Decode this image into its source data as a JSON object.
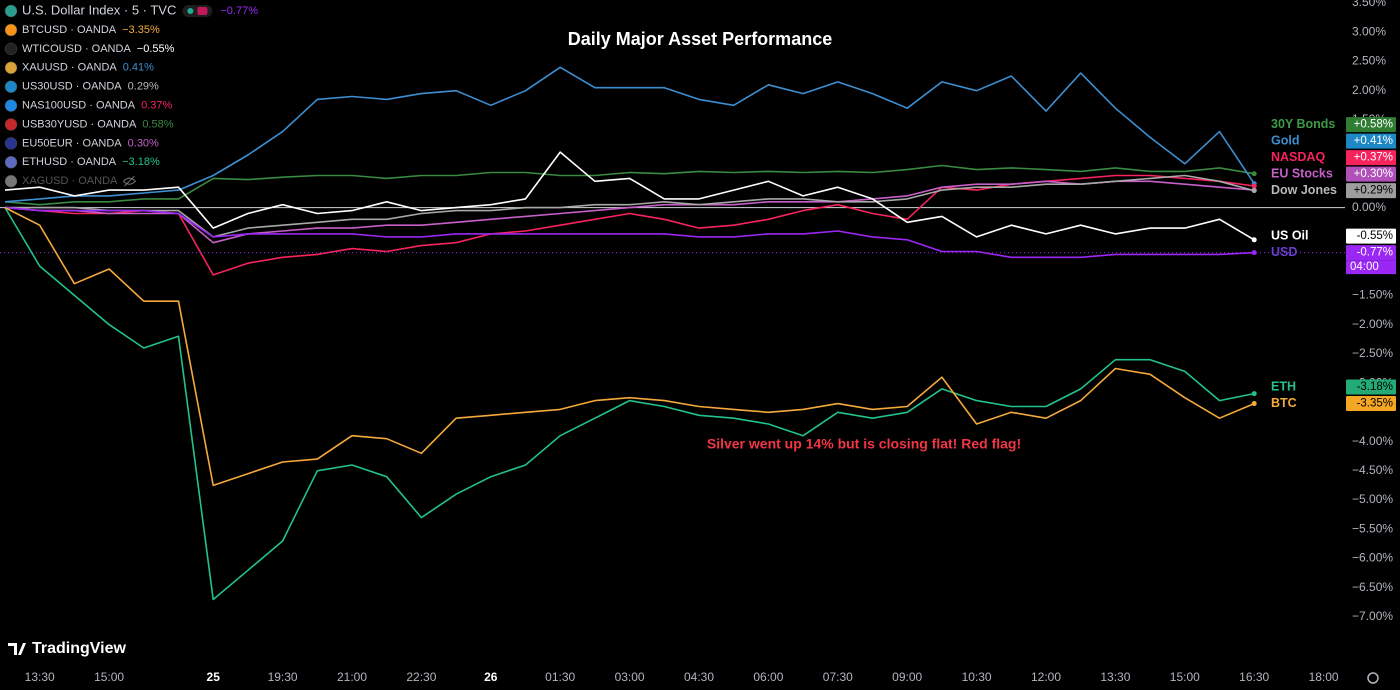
{
  "chart_data": {
    "type": "line",
    "title": "Daily Major Asset Performance",
    "annotation": "Silver went up 14% but is closing flat! Red flag!",
    "categories": [
      null,
      "13:30",
      null,
      "15:00",
      null,
      null,
      "25",
      null,
      "19:30",
      null,
      "21:00",
      null,
      "22:30",
      null,
      "26",
      null,
      "01:30",
      null,
      "03:00",
      null,
      "04:30",
      null,
      "06:00",
      null,
      "07:30",
      null,
      "09:00",
      null,
      "10:30",
      null,
      "12:00",
      null,
      "13:30",
      null,
      "15:00",
      null,
      "16:30",
      null,
      "18:00"
    ],
    "ylim": [
      -7.82,
      3.55
    ],
    "yticks": [
      {
        "value": 3.5,
        "label": "3.50%"
      },
      {
        "value": 3.0,
        "label": "3.00%"
      },
      {
        "value": 2.5,
        "label": "2.50%"
      },
      {
        "value": 2.0,
        "label": "2.00%"
      },
      {
        "value": 1.5,
        "label": "1.50%"
      },
      {
        "value": 0,
        "label": "0.00%"
      },
      {
        "value": -1.5,
        "label": "−1.50%"
      },
      {
        "value": -2.0,
        "label": "−2.00%"
      },
      {
        "value": -2.5,
        "label": "−2.50%"
      },
      {
        "value": -3.0,
        "label": "−3.00%"
      },
      {
        "value": -4.0,
        "label": "−4.00%"
      },
      {
        "value": -4.5,
        "label": "−4.50%"
      },
      {
        "value": -5.0,
        "label": "−5.00%"
      },
      {
        "value": -5.5,
        "label": "−5.50%"
      },
      {
        "value": -6.0,
        "label": "−6.00%"
      },
      {
        "value": -6.5,
        "label": "−6.50%"
      },
      {
        "value": -7.0,
        "label": "−7.00%"
      }
    ],
    "zero_line": true,
    "countdown": "04:00",
    "series": [
      {
        "name": "30Y Bonds",
        "color": "#3a8a42",
        "label_color": "#3f9a48",
        "tag_color": "#2e7d32",
        "tag_text": "#ffffff",
        "end_label": "+0.58%",
        "values": [
          0.1,
          0.05,
          0.1,
          0.1,
          0.15,
          0.15,
          0.5,
          0.48,
          0.52,
          0.55,
          0.55,
          0.5,
          0.55,
          0.55,
          0.6,
          0.6,
          0.55,
          0.55,
          0.6,
          0.58,
          0.62,
          0.6,
          0.62,
          0.6,
          0.62,
          0.6,
          0.65,
          0.72,
          0.65,
          0.68,
          0.65,
          0.62,
          0.68,
          0.62,
          0.62,
          0.68,
          0.58,
          null,
          null
        ]
      },
      {
        "name": "Gold",
        "color": "#3d8fd1",
        "label_color": "#3d8fd1",
        "tag_color": "#1e88c7",
        "tag_text": "#ffffff",
        "end_label": "+0.41%",
        "values": [
          0.1,
          0.15,
          0.2,
          0.2,
          0.25,
          0.3,
          0.55,
          0.9,
          1.3,
          1.85,
          1.9,
          1.85,
          1.95,
          2.0,
          1.75,
          2.0,
          2.4,
          2.05,
          2.05,
          2.05,
          1.85,
          1.75,
          2.1,
          1.95,
          2.15,
          1.95,
          1.7,
          2.15,
          2.0,
          2.25,
          1.65,
          2.3,
          1.7,
          1.2,
          0.75,
          1.3,
          0.41,
          null,
          null
        ]
      },
      {
        "name": "NASDAQ",
        "color": "#f7235d",
        "label_color": "#f7235d",
        "tag_color": "#f7235d",
        "tag_text": "#ffffff",
        "end_label": "+0.37%",
        "values": [
          0,
          -0.05,
          -0.1,
          -0.1,
          -0.05,
          -0.1,
          -1.15,
          -0.95,
          -0.85,
          -0.8,
          -0.7,
          -0.75,
          -0.65,
          -0.6,
          -0.45,
          -0.4,
          -0.3,
          -0.2,
          -0.1,
          -0.2,
          -0.35,
          -0.3,
          -0.2,
          -0.05,
          0.05,
          -0.1,
          -0.2,
          0.35,
          0.3,
          0.4,
          0.45,
          0.5,
          0.55,
          0.55,
          0.5,
          0.45,
          0.37,
          null,
          null
        ]
      },
      {
        "name": "EU Stocks",
        "color": "#c75fc9",
        "label_color": "#c75fc9",
        "tag_color": "#b050b8",
        "tag_text": "#ffffff",
        "end_label": "+0.30%",
        "values": [
          0,
          -0.05,
          -0.05,
          -0.1,
          -0.1,
          -0.1,
          -0.6,
          -0.45,
          -0.4,
          -0.35,
          -0.35,
          -0.3,
          -0.3,
          -0.25,
          -0.2,
          -0.15,
          -0.1,
          -0.05,
          0,
          0.05,
          0.05,
          0.05,
          0.1,
          0.1,
          0.1,
          0.15,
          0.2,
          0.35,
          0.4,
          0.4,
          0.45,
          0.4,
          0.45,
          0.45,
          0.4,
          0.35,
          0.3,
          null,
          null
        ]
      },
      {
        "name": "Dow Jones",
        "color": "#a8a8a8",
        "label_color": "#b8b8b8",
        "tag_color": "#9e9e9e",
        "tag_text": "#000000",
        "end_label": "+0.29%",
        "values": [
          0,
          0,
          0,
          -0.05,
          -0.05,
          -0.05,
          -0.5,
          -0.35,
          -0.3,
          -0.25,
          -0.2,
          -0.2,
          -0.1,
          -0.05,
          -0.05,
          0,
          0,
          0.05,
          0.05,
          0.1,
          0.05,
          0.1,
          0.15,
          0.15,
          0.1,
          0.1,
          0.15,
          0.3,
          0.35,
          0.35,
          0.4,
          0.4,
          0.45,
          0.5,
          0.55,
          0.45,
          0.29,
          null,
          null
        ]
      },
      {
        "name": "US Oil",
        "color": "#ffffff",
        "label_color": "#ffffff",
        "tag_color": "#ffffff",
        "tag_text": "#000000",
        "end_label": "-0.55%",
        "values": [
          0.3,
          0.35,
          0.2,
          0.3,
          0.3,
          0.35,
          -0.35,
          -0.1,
          0.05,
          -0.1,
          -0.05,
          0.1,
          -0.05,
          0,
          0.05,
          0.15,
          0.95,
          0.45,
          0.5,
          0.15,
          0.15,
          0.3,
          0.45,
          0.2,
          0.35,
          0.15,
          -0.25,
          -0.15,
          -0.5,
          -0.3,
          -0.45,
          -0.3,
          -0.45,
          -0.35,
          -0.35,
          -0.2,
          -0.55,
          null,
          null
        ]
      },
      {
        "name": "USD",
        "color": "#9b27f5",
        "label_color": "#6a3fd0",
        "tag_color": "#9b27f5",
        "tag_text": "#ffffff",
        "end_label": "-0.77%",
        "price_line": true,
        "values": [
          0,
          -0.05,
          -0.05,
          -0.05,
          -0.05,
          -0.1,
          -0.5,
          -0.45,
          -0.45,
          -0.45,
          -0.45,
          -0.5,
          -0.5,
          -0.45,
          -0.45,
          -0.45,
          -0.45,
          -0.45,
          -0.45,
          -0.45,
          -0.5,
          -0.5,
          -0.45,
          -0.45,
          -0.4,
          -0.5,
          -0.55,
          -0.75,
          -0.75,
          -0.85,
          -0.85,
          -0.85,
          -0.8,
          -0.8,
          -0.8,
          -0.8,
          -0.77,
          null,
          null
        ]
      },
      {
        "name": "ETH",
        "color": "#22c38a",
        "label_color": "#22c38a",
        "tag_color": "#22ab74",
        "tag_text": "#000000",
        "end_label": "-3.18%",
        "values": [
          0,
          -1.0,
          -1.5,
          -2.0,
          -2.4,
          -2.2,
          -6.7,
          -6.2,
          -5.7,
          -4.5,
          -4.4,
          -4.6,
          -5.3,
          -4.9,
          -4.6,
          -4.4,
          -3.9,
          -3.6,
          -3.3,
          -3.4,
          -3.55,
          -3.6,
          -3.7,
          -3.9,
          -3.5,
          -3.6,
          -3.5,
          -3.1,
          -3.3,
          -3.4,
          -3.4,
          -3.1,
          -2.6,
          -2.6,
          -2.8,
          -3.3,
          -3.18,
          null,
          null
        ]
      },
      {
        "name": "BTC",
        "color": "#f5a93a",
        "label_color": "#f5a93a",
        "tag_color": "#f5a623",
        "tag_text": "#000000",
        "end_label": "-3.35%",
        "values": [
          0,
          -0.3,
          -1.3,
          -1.05,
          -1.6,
          -1.6,
          -4.75,
          -4.55,
          -4.35,
          -4.3,
          -3.9,
          -3.95,
          -4.2,
          -3.6,
          -3.55,
          -3.5,
          -3.45,
          -3.3,
          -3.25,
          -3.3,
          -3.4,
          -3.45,
          -3.5,
          -3.45,
          -3.35,
          -3.45,
          -3.4,
          -2.9,
          -3.7,
          -3.5,
          -3.6,
          -3.3,
          -2.75,
          -2.85,
          -3.25,
          -3.6,
          -3.35,
          null,
          null
        ]
      }
    ]
  },
  "symbol_legend": [
    {
      "name": "U.S. Dollar Index · 5 · TVC",
      "change": "−0.77%",
      "color": "#9b27f5",
      "icon_color": "#2a9d8f"
    },
    {
      "name": "BTCUSD · OANDA",
      "change": "−3.35%",
      "color": "#f5a93a",
      "icon_color": "#f7931a"
    },
    {
      "name": "WTICOUSD · OANDA",
      "change": "−0.55%",
      "color": "#ffffff",
      "icon_color": "#222222"
    },
    {
      "name": "XAUUSD · OANDA",
      "change": "0.41%",
      "color": "#3d8fd1",
      "icon_color": "#d9a33a"
    },
    {
      "name": "US30USD · OANDA",
      "change": "0.29%",
      "color": "#b8b8b8",
      "icon_color": "#1e88c7"
    },
    {
      "name": "NAS100USD · OANDA",
      "change": "0.37%",
      "color": "#f7235d",
      "icon_color": "#1e88e5"
    },
    {
      "name": "USB30YUSD · OANDA",
      "change": "0.58%",
      "color": "#3a8a42",
      "icon_color": "#c62828"
    },
    {
      "name": "EU50EUR · OANDA",
      "change": "0.30%",
      "color": "#c75fc9",
      "icon_color": "#283593"
    },
    {
      "name": "ETHUSD · OANDA",
      "change": "−3.18%",
      "color": "#22c38a",
      "icon_color": "#5c6bc0"
    },
    {
      "name": "XAGUSD · OANDA",
      "change": null,
      "color": "#555555",
      "icon_color": "#777777"
    }
  ],
  "branding": "TradingView"
}
